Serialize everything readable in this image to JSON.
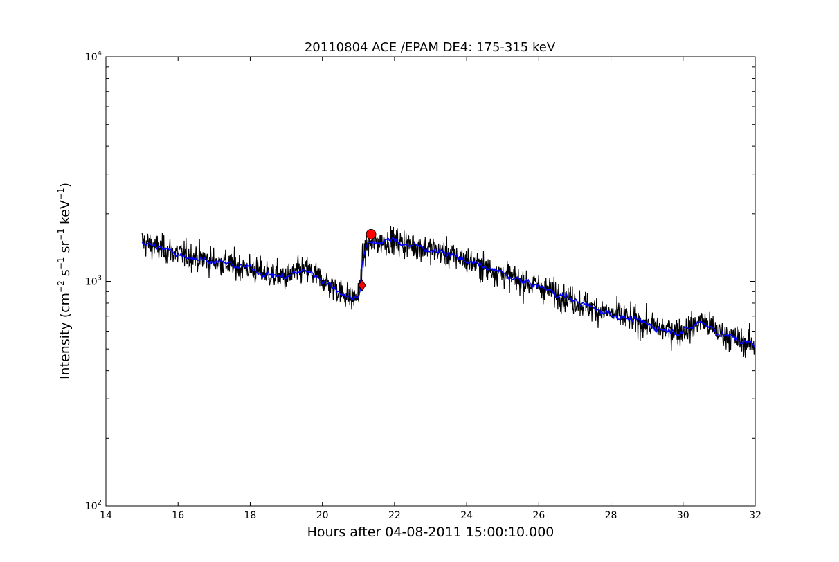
{
  "chart_data": {
    "type": "line",
    "title": "20110804 ACE /EPAM DE4: 175-315 keV",
    "xlabel": "Hours after 04-08-2011 15:00:10.000",
    "ylabel": "Intensity (cm$^{-2}$ s$^{-1}$ sr$^{-1}$ keV$^{-1}$)",
    "ylabel_parts": [
      "Intensity (cm",
      "−2",
      " s",
      "−1",
      " sr",
      "−1",
      " keV",
      "−1",
      ")"
    ],
    "xlim": [
      14,
      32
    ],
    "ylim": [
      100,
      10000
    ],
    "yscale": "log",
    "grid": false,
    "x_ticks": [
      "14",
      "16",
      "18",
      "20",
      "22",
      "24",
      "26",
      "28",
      "30",
      "32"
    ],
    "y_ticks": [
      {
        "base": "10",
        "exp": "2",
        "value": 100
      },
      {
        "base": "10",
        "exp": "3",
        "value": 1000
      },
      {
        "base": "10",
        "exp": "4",
        "value": 10000
      }
    ],
    "series": [
      {
        "role": "raw",
        "color": "#000000",
        "x": [
          15.0,
          15.5,
          16.0,
          16.5,
          17.0,
          17.5,
          18.0,
          18.5,
          19.0,
          19.3,
          19.6,
          20.0,
          20.3,
          20.6,
          20.8,
          21.0,
          21.05,
          21.1,
          21.2,
          21.3,
          21.5,
          22.0,
          22.5,
          23.0,
          23.5,
          24.0,
          24.5,
          25.0,
          25.5,
          26.0,
          26.5,
          27.0,
          27.5,
          28.0,
          28.5,
          29.0,
          29.5,
          30.0,
          30.3,
          30.5,
          30.8,
          31.0,
          31.5,
          32.0
        ],
        "y": [
          1500,
          1400,
          1330,
          1280,
          1230,
          1180,
          1140,
          1080,
          1040,
          1100,
          1120,
          1020,
          940,
          880,
          840,
          860,
          950,
          1200,
          1400,
          1470,
          1500,
          1520,
          1440,
          1390,
          1320,
          1240,
          1150,
          1080,
          1000,
          950,
          880,
          820,
          760,
          720,
          680,
          640,
          610,
          600,
          630,
          670,
          620,
          590,
          550,
          520
        ],
        "noise": 0.07
      },
      {
        "role": "smoothed",
        "color": "#0000ff",
        "x": [
          15.0,
          15.5,
          16.0,
          16.5,
          17.0,
          17.5,
          18.0,
          18.5,
          19.0,
          19.3,
          19.6,
          20.0,
          20.3,
          20.6,
          20.8,
          21.0,
          21.05,
          21.1,
          21.2,
          21.3,
          21.5,
          22.0,
          22.5,
          23.0,
          23.5,
          24.0,
          24.5,
          25.0,
          25.5,
          26.0,
          26.5,
          27.0,
          27.5,
          28.0,
          28.5,
          29.0,
          29.5,
          30.0,
          30.3,
          30.5,
          30.8,
          31.0,
          31.5,
          32.0
        ],
        "y": [
          1500,
          1400,
          1330,
          1280,
          1230,
          1180,
          1140,
          1080,
          1040,
          1100,
          1120,
          1020,
          940,
          880,
          840,
          860,
          950,
          1200,
          1400,
          1470,
          1500,
          1520,
          1440,
          1390,
          1320,
          1240,
          1150,
          1080,
          1000,
          950,
          880,
          820,
          760,
          720,
          680,
          640,
          610,
          600,
          630,
          670,
          620,
          590,
          550,
          520
        ],
        "noise": 0.025
      }
    ],
    "markers": [
      {
        "shape": "diamond",
        "x": 21.1,
        "y": 960,
        "color": "#ff0000"
      },
      {
        "shape": "circle",
        "x": 21.35,
        "y": 1620,
        "color": "#ff0000"
      }
    ]
  }
}
